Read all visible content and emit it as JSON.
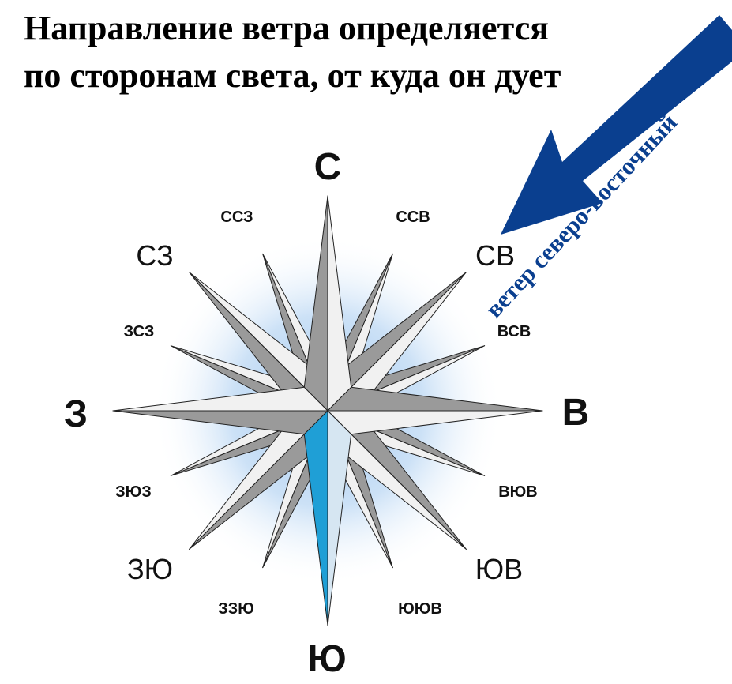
{
  "title": {
    "line1": "Направление ветра определяется",
    "line2": "по сторонам света, от куда он дует"
  },
  "wind": {
    "label": "ветер северо-восточный",
    "arrow_color": "#0a3f8f"
  },
  "compass": {
    "cardinal": {
      "n": "С",
      "e": "В",
      "s": "Ю",
      "w": "З"
    },
    "intercardinal": {
      "ne": "СВ",
      "se": "ЮВ",
      "sw": "ЗЮ",
      "nw": "СЗ"
    },
    "secondary": {
      "nne": "ССВ",
      "ene": "ВСВ",
      "ese": "ВЮВ",
      "sse": "ЮЮВ",
      "ssw": "ЗЗЮ",
      "wsw": "ЗЮЗ",
      "wnw": "ЗСЗ",
      "nnw": "ССЗ"
    },
    "colors": {
      "dark": "#9a9a9a",
      "light": "#f1f1f1",
      "south_highlight": "#1f9fd6",
      "south_highlight_light": "#d6e6f2",
      "glow": "#9ec6ee"
    }
  }
}
